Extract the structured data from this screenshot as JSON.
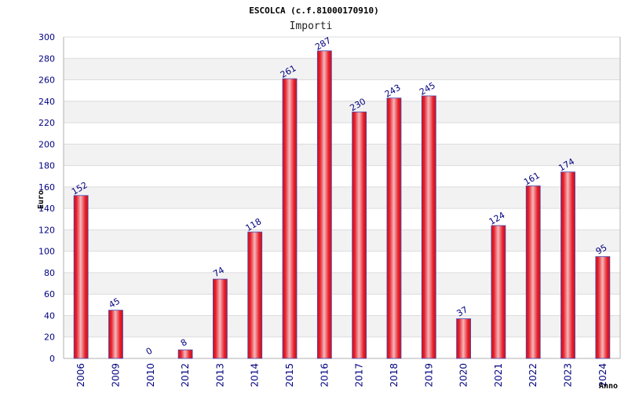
{
  "chart_data": {
    "type": "bar",
    "title": "ESCOLCA (c.f.81000170910)",
    "subtitle": "Importi",
    "xlabel": "Anno",
    "ylabel": "Euro",
    "categories": [
      "2006",
      "2009",
      "2010",
      "2012",
      "2013",
      "2014",
      "2015",
      "2016",
      "2017",
      "2018",
      "2019",
      "2020",
      "2021",
      "2022",
      "2023",
      "2024"
    ],
    "values": [
      152,
      45,
      0,
      8,
      74,
      118,
      261,
      287,
      230,
      243,
      245,
      37,
      124,
      161,
      174,
      95
    ],
    "ylim": [
      0,
      300
    ],
    "yticks": [
      0,
      20,
      40,
      60,
      80,
      100,
      120,
      140,
      160,
      180,
      200,
      220,
      240,
      260,
      280,
      300
    ],
    "grid": true,
    "colors": {
      "bar_fill": "#e8202a",
      "bar_highlight": "#f4b8bc",
      "bar_edge": "#4a4ab0",
      "band_even": "#f2f2f2",
      "band_odd": "#ffffff",
      "tick_text": "#000080",
      "axis": "#b0b0b0"
    }
  }
}
